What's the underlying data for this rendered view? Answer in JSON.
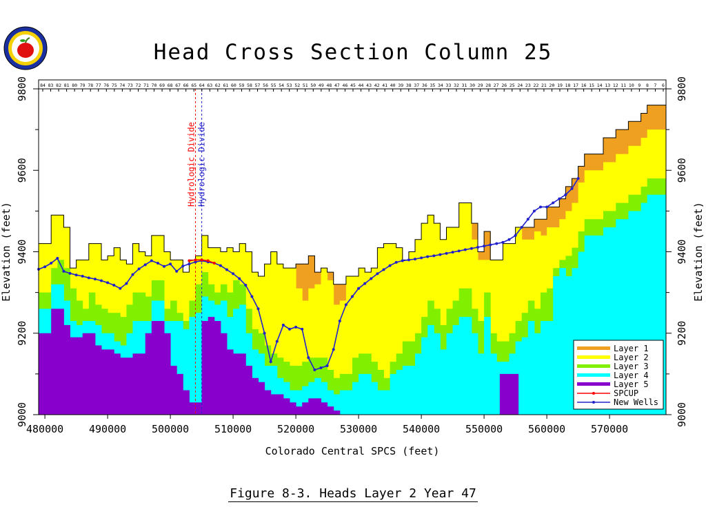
{
  "chart_data": {
    "type": "area",
    "title": "Head Cross Section Column 25",
    "xlabel": "Colorado Central SPCS (feet)",
    "ylabel": "Elevation (feet)",
    "ylabel_right": "Elevation (feet)",
    "xlim": [
      479000,
      579000
    ],
    "ylim": [
      9000,
      9800
    ],
    "x_ticks": [
      480000,
      490000,
      500000,
      510000,
      520000,
      530000,
      540000,
      550000,
      560000,
      570000
    ],
    "y_ticks": [
      9000,
      9200,
      9400,
      9600,
      9800
    ],
    "layer_x": [
      479000,
      480000,
      481000,
      482000,
      483000,
      484000,
      485000,
      486000,
      487000,
      488000,
      489000,
      490000,
      491000,
      492000,
      493000,
      494000,
      495000,
      496000,
      497000,
      498000,
      499000,
      500000,
      501000,
      502000,
      503000,
      504000,
      505000,
      506000,
      507000,
      508000,
      509000,
      510000,
      511000,
      512000,
      513000,
      514000,
      515000,
      516000,
      517000,
      518000,
      519000,
      520000,
      521000,
      522000,
      523000,
      524000,
      525000,
      526000,
      527000,
      528000,
      529000,
      530000,
      531000,
      532000,
      533000,
      534000,
      535000,
      536000,
      537000,
      538000,
      539000,
      540000,
      541000,
      542000,
      543000,
      544000,
      545000,
      546000,
      547000,
      548000,
      549000,
      550000,
      551000,
      552000,
      553000,
      554000,
      555000,
      556000,
      557000,
      558000,
      559000,
      560000,
      561000,
      562000,
      563000,
      564000,
      565000,
      566000,
      567000,
      568000,
      569000,
      570000,
      571000,
      572000,
      573000,
      574000,
      575000,
      576000,
      577000,
      578000,
      579000
    ],
    "layers": [
      {
        "name": "Layer 1",
        "color": "#f0a020",
        "top": [
          9420,
          9420,
          9490,
          9490,
          9460,
          9360,
          9380,
          9380,
          9420,
          9420,
          9380,
          9390,
          9410,
          9380,
          9370,
          9420,
          9400,
          9390,
          9440,
          9440,
          9400,
          9380,
          9380,
          9350,
          9380,
          9390,
          9440,
          9410,
          9410,
          9400,
          9410,
          9400,
          9420,
          9400,
          9350,
          9340,
          9370,
          9400,
          9370,
          9360,
          9360,
          9370,
          9370,
          9390,
          9350,
          9360,
          9350,
          9320,
          9320,
          9340,
          9340,
          9360,
          9350,
          9360,
          9410,
          9420,
          9420,
          9410,
          9380,
          9400,
          9430,
          9470,
          9490,
          9470,
          9430,
          9460,
          9460,
          9520,
          9520,
          9470,
          9400,
          9450,
          9380,
          9380,
          9420,
          9420,
          9460,
          9460,
          9460,
          9480,
          9480,
          9510,
          9510,
          9530,
          9560,
          9580,
          9610,
          9640,
          9640,
          9640,
          9680,
          9680,
          9700,
          9700,
          9720,
          9720,
          9740,
          9760,
          9760,
          9760,
          9760
        ]
      },
      {
        "name": "Layer 2",
        "color": "#ffff00",
        "top": [
          9420,
          9420,
          9490,
          9490,
          9460,
          9360,
          9380,
          9380,
          9420,
          9420,
          9380,
          9390,
          9410,
          9380,
          9370,
          9420,
          9400,
          9390,
          9440,
          9440,
          9400,
          9380,
          9380,
          9350,
          9380,
          9390,
          9440,
          9410,
          9410,
          9400,
          9410,
          9400,
          9420,
          9400,
          9350,
          9340,
          9370,
          9400,
          9370,
          9360,
          9360,
          9310,
          9280,
          9310,
          9320,
          9360,
          9330,
          9270,
          9280,
          9340,
          9340,
          9360,
          9350,
          9360,
          9410,
          9420,
          9420,
          9410,
          9380,
          9400,
          9430,
          9470,
          9490,
          9470,
          9430,
          9460,
          9460,
          9520,
          9520,
          9430,
          9380,
          9380,
          9380,
          9380,
          9420,
          9420,
          9460,
          9430,
          9430,
          9450,
          9440,
          9460,
          9460,
          9480,
          9500,
          9520,
          9570,
          9600,
          9600,
          9600,
          9620,
          9620,
          9640,
          9640,
          9660,
          9660,
          9680,
          9700,
          9700,
          9700,
          9700
        ]
      },
      {
        "name": "Layer 3",
        "color": "#80f000",
        "top": [
          9300,
          9300,
          9360,
          9380,
          9360,
          9310,
          9280,
          9260,
          9300,
          9270,
          9260,
          9250,
          9250,
          9240,
          9270,
          9300,
          9300,
          9290,
          9330,
          9330,
          9260,
          9280,
          9250,
          9230,
          9280,
          9320,
          9350,
          9320,
          9300,
          9320,
          9300,
          9330,
          9320,
          9260,
          9210,
          9200,
          9170,
          9150,
          9140,
          9130,
          9120,
          9120,
          9130,
          9140,
          9140,
          9140,
          9110,
          9090,
          9100,
          9100,
          9140,
          9150,
          9150,
          9130,
          9110,
          9090,
          9130,
          9150,
          9180,
          9180,
          9200,
          9240,
          9280,
          9260,
          9220,
          9260,
          9280,
          9310,
          9310,
          9260,
          9230,
          9300,
          9200,
          9180,
          9180,
          9200,
          9230,
          9250,
          9280,
          9260,
          9300,
          9310,
          9360,
          9380,
          9390,
          9410,
          9450,
          9480,
          9480,
          9480,
          9500,
          9500,
          9520,
          9520,
          9540,
          9540,
          9560,
          9580,
          9580,
          9580,
          9580
        ]
      },
      {
        "name": "Layer 4",
        "color": "#00ffff",
        "top": [
          9260,
          9260,
          9320,
          9320,
          9280,
          9230,
          9220,
          9230,
          9230,
          9220,
          9200,
          9200,
          9180,
          9170,
          9200,
          9230,
          9230,
          9230,
          9280,
          9280,
          9230,
          9230,
          9230,
          9210,
          9240,
          9250,
          9290,
          9280,
          9270,
          9280,
          9240,
          9260,
          9270,
          9200,
          9160,
          9150,
          9120,
          9120,
          9090,
          9080,
          9060,
          9060,
          9070,
          9080,
          9090,
          9080,
          9060,
          9050,
          9060,
          9060,
          9080,
          9100,
          9100,
          9080,
          9060,
          9060,
          9100,
          9110,
          9120,
          9120,
          9150,
          9190,
          9220,
          9200,
          9160,
          9200,
          9220,
          9240,
          9240,
          9200,
          9150,
          9240,
          9150,
          9130,
          9130,
          9150,
          9180,
          9190,
          9230,
          9200,
          9230,
          9230,
          9340,
          9360,
          9340,
          9360,
          9400,
          9440,
          9440,
          9440,
          9460,
          9460,
          9480,
          9480,
          9500,
          9500,
          9520,
          9540,
          9540,
          9540,
          9540
        ]
      },
      {
        "name": "Layer 5",
        "color": "#8800cc",
        "top": [
          9200,
          9200,
          9260,
          9260,
          9220,
          9190,
          9190,
          9200,
          9200,
          9170,
          9160,
          9160,
          9150,
          9140,
          9140,
          9150,
          9150,
          9200,
          9230,
          9230,
          9200,
          9120,
          9100,
          9060,
          9030,
          9030,
          9230,
          9240,
          9230,
          9200,
          9160,
          9150,
          9150,
          9120,
          9090,
          9080,
          9060,
          9050,
          9050,
          9040,
          9030,
          9020,
          9030,
          9040,
          9040,
          9030,
          9020,
          9010,
          9000,
          9000,
          9000,
          9000,
          9000,
          9000,
          9000,
          9000,
          9000,
          9000,
          9000,
          9000,
          9000,
          9000,
          9000,
          9000,
          9000,
          9000,
          9000,
          9000,
          9000,
          9000,
          9000,
          9000,
          9000,
          9000,
          9000,
          9000,
          9000,
          9000,
          9000,
          9000,
          9000,
          9000,
          9000,
          9000,
          9000,
          9000,
          9000,
          9000,
          9000,
          9000,
          9000,
          9000,
          9000,
          9000,
          9000,
          9000,
          9000,
          9000,
          9000,
          9000,
          9000
        ]
      }
    ],
    "layer5_extra": {
      "x": [
        552500,
        555500
      ],
      "top": 9100
    },
    "series": [
      {
        "name": "SPCUP",
        "color": "#ff0000",
        "x": [
          503000,
          504000,
          505000,
          506000,
          507000
        ],
        "y": [
          9378,
          9380,
          9380,
          9378,
          9372
        ]
      },
      {
        "name": "New Wells",
        "color": "#2020cc",
        "x": [
          479000,
          480000,
          481000,
          482000,
          483000,
          484000,
          485000,
          486000,
          487000,
          488000,
          489000,
          490000,
          491000,
          492000,
          493000,
          494000,
          495000,
          496000,
          497000,
          498000,
          499000,
          500000,
          501000,
          502000,
          503000,
          504000,
          505000,
          506000,
          507000,
          508000,
          509000,
          510000,
          511000,
          512000,
          513000,
          514000,
          515000,
          516000,
          517000,
          518000,
          519000,
          520000,
          521000,
          522000,
          523000,
          524000,
          525000,
          526000,
          527000,
          528000,
          529000,
          530000,
          531000,
          532000,
          533000,
          534000,
          535000,
          536000,
          537000,
          538000,
          539000,
          540000,
          541000,
          542000,
          543000,
          544000,
          545000,
          546000,
          547000,
          548000,
          549000,
          550000,
          551000,
          552000,
          553000,
          554000,
          555000,
          556000,
          557000,
          558000,
          559000,
          560000,
          561000,
          562000,
          563000,
          564000,
          565000
        ],
        "y": [
          9357,
          9363,
          9372,
          9384,
          9352,
          9347,
          9343,
          9340,
          9336,
          9333,
          9329,
          9324,
          9318,
          9310,
          9322,
          9344,
          9358,
          9368,
          9378,
          9372,
          9364,
          9370,
          9352,
          9365,
          9370,
          9375,
          9378,
          9375,
          9372,
          9366,
          9356,
          9346,
          9334,
          9318,
          9290,
          9260,
          9200,
          9130,
          9180,
          9220,
          9210,
          9215,
          9210,
          9140,
          9110,
          9115,
          9120,
          9160,
          9230,
          9270,
          9290,
          9310,
          9322,
          9334,
          9346,
          9356,
          9366,
          9374,
          9378,
          9380,
          9382,
          9385,
          9388,
          9390,
          9393,
          9396,
          9399,
          9402,
          9405,
          9408,
          9411,
          9414,
          9417,
          9420,
          9423,
          9430,
          9440,
          9460,
          9480,
          9500,
          9510,
          9510,
          9520,
          9530,
          9540,
          9555,
          9580
        ]
      }
    ],
    "legend": {
      "placement": "bottom-right",
      "entries": [
        "Layer 1",
        "Layer 2",
        "Layer 3",
        "Layer 4",
        "Layer 5",
        "SPCUP",
        "New Wells"
      ]
    },
    "annotations": [
      {
        "text": "Hydrologic Divide",
        "color": "#ff0000",
        "x": 504000
      },
      {
        "text": "Hydrologic Divide",
        "color": "#2020cc",
        "x": 505000
      }
    ],
    "row_numbers": [
      "84",
      "83",
      "82",
      "81",
      "80",
      "79",
      "78",
      "77",
      "76",
      "75",
      "74",
      "73",
      "72",
      "71",
      "70",
      "69",
      "68",
      "67",
      "66",
      "65",
      "64",
      "63",
      "62",
      "61",
      "60",
      "59",
      "58",
      "57",
      "56",
      "55",
      "54",
      "53",
      "52",
      "51",
      "50",
      "49",
      "48",
      "47",
      "46",
      "45",
      "44",
      "43",
      "42",
      "41",
      "40",
      "39",
      "38",
      "37",
      "36",
      "35",
      "34",
      "33",
      "32",
      "31",
      "30",
      "29",
      "28",
      "27",
      "26",
      "25",
      "24",
      "23",
      "22",
      "21",
      "20",
      "19",
      "18",
      "17",
      "16",
      "15",
      "14",
      "13",
      "12",
      "11",
      "10",
      "9",
      "8",
      "7",
      "6"
    ],
    "grid": false
  },
  "caption": "Figure 8-3.  Heads Layer 2 Year 47"
}
